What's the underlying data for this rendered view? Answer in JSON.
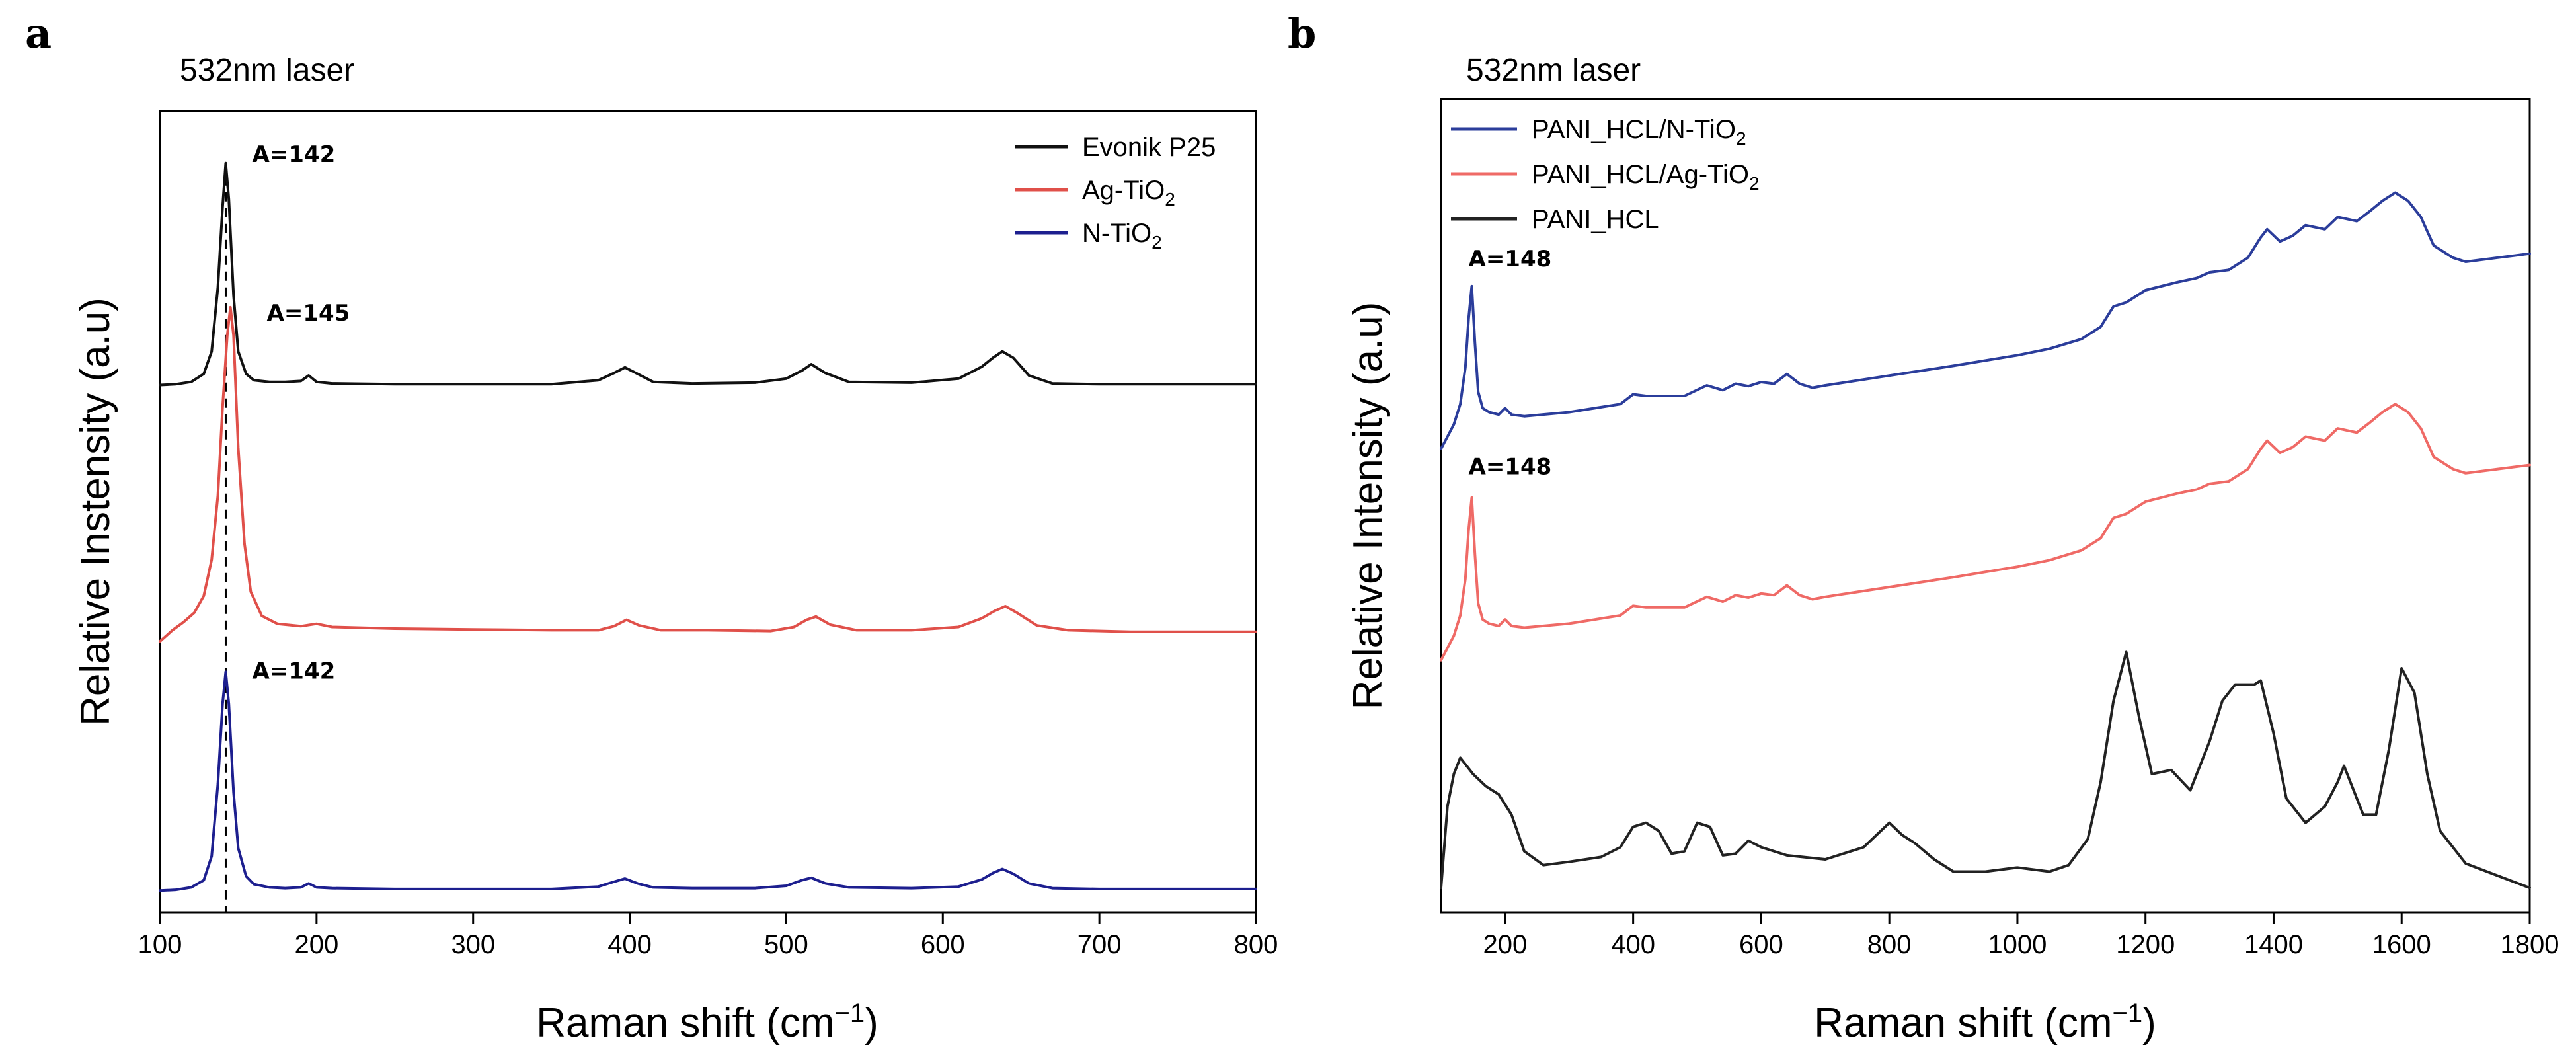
{
  "chart_data": [
    {
      "type": "line",
      "panel_label": "a",
      "title": "532nm laser",
      "xlabel": "Raman shift (cm",
      "xlabel_sup": "−1",
      "xlabel_end": ")",
      "ylabel": "Relative Instensity (a.u)",
      "xlim": [
        100,
        800
      ],
      "ylim": [
        0,
        1
      ],
      "xticks": [
        100,
        200,
        300,
        400,
        500,
        600,
        700,
        800
      ],
      "grid": false,
      "legend_position": "top-right",
      "series": [
        {
          "name": "Evonik P25",
          "label_parts": [
            "Evonik P25"
          ],
          "color": "#111111",
          "x": [
            100,
            110,
            120,
            128,
            133,
            137,
            140,
            142,
            144,
            147,
            150,
            155,
            160,
            170,
            180,
            190,
            195,
            200,
            210,
            250,
            300,
            350,
            380,
            390,
            397,
            405,
            415,
            440,
            480,
            500,
            510,
            516,
            525,
            540,
            580,
            610,
            625,
            632,
            638,
            645,
            655,
            670,
            700,
            750,
            800
          ],
          "y": [
            0.658,
            0.659,
            0.662,
            0.672,
            0.7,
            0.78,
            0.88,
            0.935,
            0.89,
            0.77,
            0.7,
            0.672,
            0.664,
            0.662,
            0.662,
            0.663,
            0.67,
            0.662,
            0.66,
            0.659,
            0.659,
            0.659,
            0.664,
            0.673,
            0.68,
            0.672,
            0.662,
            0.66,
            0.661,
            0.666,
            0.676,
            0.684,
            0.673,
            0.662,
            0.661,
            0.666,
            0.681,
            0.692,
            0.7,
            0.692,
            0.67,
            0.66,
            0.659,
            0.659,
            0.659
          ]
        },
        {
          "name": "Ag-TiO2",
          "label_parts": [
            "Ag-TiO",
            "2",
            ""
          ],
          "color": "#e0504a",
          "x": [
            100,
            108,
            115,
            122,
            128,
            133,
            137,
            140,
            143,
            145,
            147,
            150,
            154,
            158,
            165,
            175,
            190,
            200,
            210,
            250,
            300,
            350,
            380,
            390,
            398,
            406,
            420,
            450,
            490,
            505,
            513,
            519,
            528,
            545,
            580,
            610,
            625,
            633,
            640,
            648,
            660,
            680,
            720,
            800
          ],
          "y": [
            0.338,
            0.352,
            0.362,
            0.374,
            0.395,
            0.44,
            0.52,
            0.63,
            0.72,
            0.755,
            0.72,
            0.58,
            0.46,
            0.4,
            0.37,
            0.36,
            0.357,
            0.36,
            0.356,
            0.354,
            0.353,
            0.352,
            0.352,
            0.357,
            0.365,
            0.358,
            0.352,
            0.352,
            0.351,
            0.356,
            0.365,
            0.369,
            0.359,
            0.352,
            0.352,
            0.356,
            0.367,
            0.376,
            0.382,
            0.373,
            0.358,
            0.352,
            0.35,
            0.35
          ]
        },
        {
          "name": "N-TiO2",
          "label_parts": [
            "N-TiO",
            "2",
            ""
          ],
          "color": "#1d1f8f",
          "x": [
            100,
            110,
            120,
            128,
            133,
            137,
            140,
            142,
            144,
            147,
            150,
            155,
            160,
            170,
            180,
            190,
            195,
            200,
            210,
            250,
            300,
            350,
            380,
            390,
            397,
            405,
            415,
            440,
            480,
            500,
            510,
            516,
            525,
            540,
            580,
            610,
            625,
            632,
            638,
            645,
            655,
            670,
            700,
            750,
            800
          ],
          "y": [
            0.027,
            0.028,
            0.031,
            0.04,
            0.07,
            0.16,
            0.26,
            0.3,
            0.26,
            0.15,
            0.08,
            0.045,
            0.035,
            0.031,
            0.03,
            0.031,
            0.036,
            0.031,
            0.03,
            0.029,
            0.029,
            0.029,
            0.032,
            0.038,
            0.042,
            0.036,
            0.031,
            0.03,
            0.03,
            0.033,
            0.04,
            0.043,
            0.036,
            0.031,
            0.03,
            0.032,
            0.041,
            0.049,
            0.054,
            0.048,
            0.036,
            0.03,
            0.029,
            0.029,
            0.029
          ]
        }
      ],
      "annotations": [
        {
          "text": "A=142",
          "x": 142,
          "series": "Evonik P25"
        },
        {
          "text": "A=145",
          "x": 145,
          "series": "Ag-TiO2"
        },
        {
          "text": "A=142",
          "x": 142,
          "series": "N-TiO2"
        }
      ],
      "reference_line": {
        "x": 142,
        "style": "dashed"
      }
    },
    {
      "type": "line",
      "panel_label": "b",
      "title": "532nm laser",
      "xlabel": "Raman shift (cm",
      "xlabel_sup": "−1",
      "xlabel_end": ")",
      "ylabel": "Relative Intensity (a.u)",
      "xlim": [
        100,
        1800
      ],
      "ylim": [
        0,
        1
      ],
      "xticks": [
        200,
        400,
        600,
        800,
        1000,
        1200,
        1400,
        1600,
        1800
      ],
      "grid": false,
      "legend_position": "top-left",
      "series": [
        {
          "name": "PANI_HCL/N-TiO2",
          "label_parts": [
            "PANI_HCL/N-TiO",
            "2",
            ""
          ],
          "color": "#2b3d9b",
          "x": [
            100,
            110,
            120,
            130,
            138,
            143,
            148,
            153,
            158,
            165,
            175,
            190,
            200,
            210,
            230,
            300,
            380,
            400,
            420,
            480,
            515,
            540,
            560,
            580,
            600,
            620,
            640,
            660,
            680,
            700,
            800,
            900,
            1000,
            1050,
            1100,
            1130,
            1150,
            1170,
            1200,
            1250,
            1280,
            1300,
            1330,
            1360,
            1380,
            1390,
            1410,
            1430,
            1450,
            1480,
            1500,
            1530,
            1550,
            1570,
            1590,
            1610,
            1630,
            1650,
            1680,
            1700,
            1750,
            1800
          ],
          "y": [
            0.57,
            0.585,
            0.6,
            0.625,
            0.67,
            0.73,
            0.77,
            0.7,
            0.64,
            0.62,
            0.615,
            0.612,
            0.62,
            0.612,
            0.61,
            0.615,
            0.625,
            0.637,
            0.635,
            0.635,
            0.648,
            0.642,
            0.65,
            0.647,
            0.652,
            0.65,
            0.662,
            0.65,
            0.645,
            0.648,
            0.66,
            0.672,
            0.685,
            0.693,
            0.705,
            0.72,
            0.745,
            0.75,
            0.765,
            0.775,
            0.78,
            0.787,
            0.79,
            0.805,
            0.83,
            0.84,
            0.825,
            0.832,
            0.845,
            0.84,
            0.855,
            0.85,
            0.862,
            0.875,
            0.885,
            0.875,
            0.855,
            0.82,
            0.805,
            0.8,
            0.805,
            0.81
          ]
        },
        {
          "name": "PANI_HCL/Ag-TiO2",
          "label_parts": [
            "PANI_HCL/Ag-TiO",
            "2",
            ""
          ],
          "color": "#ef6a66",
          "x": [
            100,
            110,
            120,
            130,
            138,
            143,
            148,
            153,
            158,
            165,
            175,
            190,
            200,
            210,
            230,
            300,
            380,
            400,
            420,
            480,
            515,
            540,
            560,
            580,
            600,
            620,
            640,
            660,
            680,
            700,
            800,
            900,
            1000,
            1050,
            1100,
            1130,
            1150,
            1170,
            1200,
            1250,
            1280,
            1300,
            1330,
            1360,
            1380,
            1390,
            1410,
            1430,
            1450,
            1480,
            1500,
            1530,
            1550,
            1570,
            1590,
            1610,
            1630,
            1650,
            1680,
            1700,
            1750,
            1800
          ],
          "y": [
            0.31,
            0.325,
            0.34,
            0.365,
            0.41,
            0.47,
            0.51,
            0.44,
            0.38,
            0.36,
            0.355,
            0.352,
            0.36,
            0.352,
            0.35,
            0.355,
            0.365,
            0.377,
            0.375,
            0.375,
            0.388,
            0.382,
            0.39,
            0.387,
            0.392,
            0.39,
            0.402,
            0.39,
            0.385,
            0.388,
            0.4,
            0.412,
            0.425,
            0.433,
            0.445,
            0.46,
            0.485,
            0.49,
            0.505,
            0.515,
            0.52,
            0.527,
            0.53,
            0.545,
            0.57,
            0.58,
            0.565,
            0.572,
            0.585,
            0.58,
            0.595,
            0.59,
            0.602,
            0.615,
            0.625,
            0.615,
            0.595,
            0.56,
            0.545,
            0.54,
            0.545,
            0.55
          ]
        },
        {
          "name": "PANI_HCL",
          "label_parts": [
            "PANI_HCL"
          ],
          "color": "#222222",
          "x": [
            100,
            110,
            120,
            130,
            150,
            170,
            190,
            210,
            230,
            260,
            300,
            350,
            380,
            400,
            420,
            440,
            460,
            480,
            500,
            520,
            540,
            560,
            580,
            600,
            640,
            700,
            760,
            800,
            820,
            840,
            870,
            900,
            950,
            1000,
            1050,
            1080,
            1110,
            1130,
            1150,
            1170,
            1190,
            1210,
            1240,
            1270,
            1300,
            1320,
            1340,
            1370,
            1380,
            1400,
            1420,
            1450,
            1480,
            1500,
            1510,
            1520,
            1540,
            1560,
            1580,
            1600,
            1620,
            1640,
            1660,
            1700,
            1750,
            1800
          ],
          "y": [
            0.03,
            0.13,
            0.17,
            0.19,
            0.17,
            0.155,
            0.145,
            0.12,
            0.075,
            0.058,
            0.062,
            0.068,
            0.08,
            0.105,
            0.11,
            0.1,
            0.072,
            0.075,
            0.11,
            0.105,
            0.07,
            0.072,
            0.088,
            0.08,
            0.07,
            0.065,
            0.08,
            0.11,
            0.095,
            0.085,
            0.065,
            0.05,
            0.05,
            0.055,
            0.05,
            0.058,
            0.09,
            0.16,
            0.26,
            0.32,
            0.24,
            0.17,
            0.175,
            0.15,
            0.21,
            0.26,
            0.28,
            0.28,
            0.285,
            0.22,
            0.14,
            0.11,
            0.13,
            0.16,
            0.18,
            0.16,
            0.12,
            0.12,
            0.2,
            0.3,
            0.27,
            0.17,
            0.1,
            0.06,
            0.045,
            0.03
          ]
        }
      ],
      "annotations": [
        {
          "text": "A=148",
          "x": 148,
          "series": "PANI_HCL/N-TiO2"
        },
        {
          "text": "A=148",
          "x": 148,
          "series": "PANI_HCL/Ag-TiO2"
        }
      ]
    }
  ]
}
